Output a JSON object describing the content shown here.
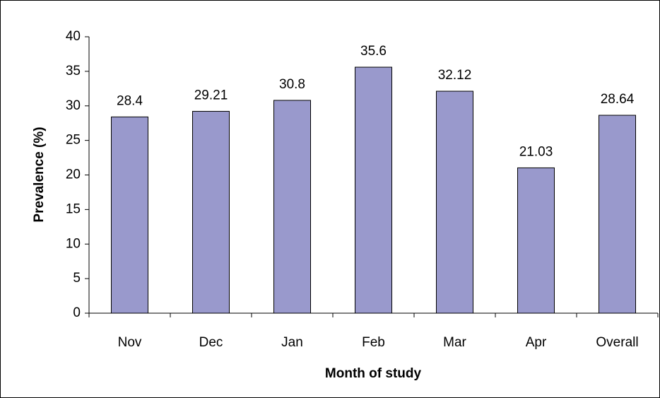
{
  "chart_data": {
    "type": "bar",
    "x_label": "Month of study",
    "y_label": "Prevalence (%)",
    "categories": [
      "Nov",
      "Dec",
      "Jan",
      "Feb",
      "Mar",
      "Apr",
      "Overall"
    ],
    "values": [
      28.4,
      29.21,
      30.8,
      35.6,
      32.12,
      21.03,
      28.64
    ],
    "color": "#9999cc",
    "ylim": [
      0,
      40
    ],
    "yticks": [
      0,
      5,
      10,
      15,
      20,
      25,
      30,
      35,
      40
    ],
    "grid": false,
    "data_labels": true
  }
}
